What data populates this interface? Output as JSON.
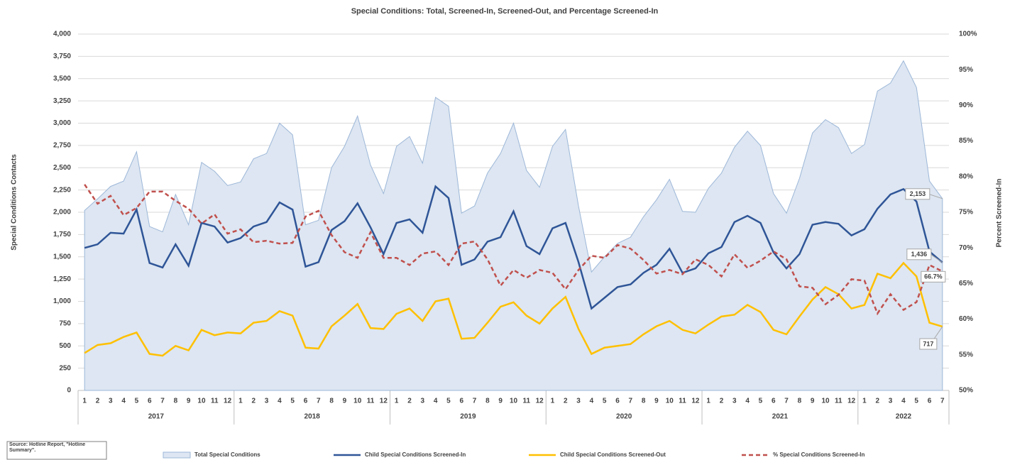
{
  "chart_data": {
    "type": "line",
    "title": "Special Conditions: Total, Screened-In, Screened-Out, and Percentage Screened-In",
    "ylabel": "Special Conditions Contacts",
    "y2label": "Percent Screened-In",
    "source": "Source: Hotline Report, \"Hotline Summary\".",
    "legend": "bottom",
    "grid": true,
    "categories": [
      "1",
      "2",
      "3",
      "4",
      "5",
      "6",
      "7",
      "8",
      "9",
      "10",
      "11",
      "12",
      "1",
      "2",
      "3",
      "4",
      "5",
      "6",
      "7",
      "8",
      "9",
      "10",
      "11",
      "12",
      "1",
      "2",
      "3",
      "4",
      "5",
      "6",
      "7",
      "8",
      "9",
      "10",
      "11",
      "12",
      "1",
      "2",
      "3",
      "4",
      "5",
      "6",
      "7",
      "8",
      "9",
      "10",
      "11",
      "12",
      "1",
      "2",
      "3",
      "4",
      "5",
      "6",
      "7",
      "8",
      "9",
      "10",
      "11",
      "12",
      "1",
      "2",
      "3",
      "4",
      "5",
      "6",
      "7"
    ],
    "category_groups": [
      "2017",
      "2018",
      "2019",
      "2020",
      "2021",
      "2022"
    ],
    "ylim": [
      0,
      4000
    ],
    "yticks": [
      0,
      250,
      500,
      750,
      {
        "value": 1000,
        "label": "1,000"
      },
      {
        "value": 1250,
        "label": "1,250"
      },
      {
        "value": 1500,
        "label": "1,500"
      },
      {
        "value": 1750,
        "label": "1,750"
      },
      {
        "value": 2000,
        "label": "2,000"
      },
      {
        "value": 2250,
        "label": "2,250"
      },
      {
        "value": 2500,
        "label": "2,500"
      },
      {
        "value": 2750,
        "label": "2,750"
      },
      {
        "value": 3000,
        "label": "3,000"
      },
      {
        "value": 3250,
        "label": "3,250"
      },
      {
        "value": 3500,
        "label": "3,500"
      },
      {
        "value": 3750,
        "label": "3,750"
      },
      {
        "value": 4000,
        "label": "4,000"
      }
    ],
    "y2lim": [
      50,
      100
    ],
    "y2ticks": [
      {
        "value": 50,
        "label": "50%"
      },
      {
        "value": 55,
        "label": "55%"
      },
      {
        "value": 60,
        "label": "60%"
      },
      {
        "value": 65,
        "label": "65%"
      },
      {
        "value": 70,
        "label": "70%"
      },
      {
        "value": 75,
        "label": "75%"
      },
      {
        "value": 80,
        "label": "80%"
      },
      {
        "value": 85,
        "label": "85%"
      },
      {
        "value": 90,
        "label": "90%"
      },
      {
        "value": 95,
        "label": "95%"
      },
      {
        "value": 100,
        "label": "100%"
      }
    ],
    "series": [
      {
        "name": "Total Special Conditions",
        "style": "area",
        "color": "#9db7d8",
        "fill": "#dde6f2",
        "values": [
          2020,
          2150,
          2290,
          2350,
          2680,
          1840,
          1780,
          2200,
          1860,
          2560,
          2460,
          2300,
          2340,
          2600,
          2660,
          3000,
          2870,
          1860,
          1910,
          2500,
          2740,
          3080,
          2530,
          2210,
          2740,
          2850,
          2550,
          3290,
          3190,
          1990,
          2070,
          2440,
          2660,
          3000,
          2470,
          2280,
          2740,
          2930,
          2070,
          1330,
          1500,
          1650,
          1720,
          1950,
          2140,
          2370,
          2010,
          2000,
          2270,
          2440,
          2730,
          2910,
          2750,
          2210,
          1990,
          2380,
          2890,
          3040,
          2950,
          2660,
          2760,
          3360,
          3450,
          3700,
          3400,
          2350,
          2153
        ],
        "value_labels": [
          null,
          null,
          null,
          null,
          null,
          null,
          null,
          null,
          null,
          null,
          null,
          null,
          null,
          null,
          null,
          null,
          null,
          null,
          null,
          null,
          null,
          null,
          null,
          null,
          null,
          null,
          null,
          null,
          null,
          null,
          null,
          null,
          null,
          null,
          null,
          null,
          null,
          null,
          null,
          null,
          null,
          null,
          null,
          null,
          null,
          null,
          null,
          null,
          null,
          null,
          null,
          null,
          null,
          null,
          null,
          null,
          null,
          null,
          null,
          null,
          null,
          null,
          null,
          null,
          null,
          null,
          "2,153"
        ]
      },
      {
        "name": "Child Special Conditions Screened-In",
        "style": "solid",
        "color": "#2f5597",
        "values": [
          1600,
          1640,
          1770,
          1760,
          2030,
          1430,
          1380,
          1640,
          1400,
          1880,
          1840,
          1660,
          1710,
          1840,
          1890,
          2110,
          2030,
          1390,
          1440,
          1800,
          1900,
          2100,
          1830,
          1530,
          1880,
          1920,
          1770,
          2290,
          2160,
          1410,
          1470,
          1670,
          1720,
          2010,
          1620,
          1530,
          1820,
          1880,
          1440,
          920,
          1040,
          1160,
          1190,
          1320,
          1410,
          1590,
          1320,
          1370,
          1540,
          1610,
          1890,
          1960,
          1880,
          1550,
          1370,
          1530,
          1860,
          1890,
          1870,
          1740,
          1810,
          2040,
          2200,
          2260,
          2120,
          1560,
          1436
        ],
        "value_labels": [
          null,
          null,
          null,
          null,
          null,
          null,
          null,
          null,
          null,
          null,
          null,
          null,
          null,
          null,
          null,
          null,
          null,
          null,
          null,
          null,
          null,
          null,
          null,
          null,
          null,
          null,
          null,
          null,
          null,
          null,
          null,
          null,
          null,
          null,
          null,
          null,
          null,
          null,
          null,
          null,
          null,
          null,
          null,
          null,
          null,
          null,
          null,
          null,
          null,
          null,
          null,
          null,
          null,
          null,
          null,
          null,
          null,
          null,
          null,
          null,
          null,
          null,
          null,
          null,
          null,
          null,
          "1,436"
        ]
      },
      {
        "name": "Child Special Conditions Screened-Out",
        "style": "solid",
        "color": "#ffc000",
        "values": [
          420,
          510,
          530,
          600,
          650,
          410,
          390,
          500,
          450,
          680,
          620,
          650,
          640,
          760,
          780,
          890,
          840,
          480,
          470,
          720,
          840,
          970,
          700,
          690,
          860,
          920,
          780,
          1000,
          1030,
          580,
          590,
          760,
          940,
          990,
          840,
          750,
          920,
          1050,
          690,
          410,
          480,
          500,
          520,
          630,
          720,
          780,
          680,
          640,
          740,
          830,
          850,
          960,
          880,
          680,
          630,
          830,
          1020,
          1160,
          1080,
          920,
          960,
          1310,
          1260,
          1430,
          1280,
          760,
          717
        ]
      },
      {
        "name": "% Special Conditions Screened-In",
        "style": "dashed",
        "color": "#c0504d",
        "axis": "y2",
        "values": [
          78.9,
          76.2,
          77.3,
          74.6,
          75.6,
          77.9,
          77.9,
          76.6,
          75.5,
          73.4,
          74.7,
          72.0,
          72.6,
          70.8,
          71.0,
          70.6,
          70.7,
          74.4,
          75.2,
          71.8,
          69.4,
          68.6,
          72.2,
          68.6,
          68.6,
          67.6,
          69.2,
          69.5,
          67.6,
          70.6,
          70.9,
          68.4,
          64.7,
          66.9,
          65.8,
          66.9,
          66.5,
          64.2,
          66.9,
          68.9,
          68.6,
          70.4,
          69.9,
          68.3,
          66.4,
          66.9,
          66.3,
          68.4,
          67.6,
          66.0,
          69.1,
          67.2,
          68.2,
          69.5,
          68.4,
          64.6,
          64.4,
          62.1,
          63.4,
          65.6,
          65.4,
          60.8,
          63.5,
          61.3,
          62.4,
          67.6,
          66.7
        ],
        "value_labels": [
          null,
          null,
          null,
          null,
          null,
          null,
          null,
          null,
          null,
          null,
          null,
          null,
          null,
          null,
          null,
          null,
          null,
          null,
          null,
          null,
          null,
          null,
          null,
          null,
          null,
          null,
          null,
          null,
          null,
          null,
          null,
          null,
          null,
          null,
          null,
          null,
          null,
          null,
          null,
          null,
          null,
          null,
          null,
          null,
          null,
          null,
          null,
          null,
          null,
          null,
          null,
          null,
          null,
          null,
          null,
          null,
          null,
          null,
          null,
          null,
          null,
          null,
          null,
          null,
          null,
          null,
          "66.7%"
        ]
      }
    ]
  }
}
